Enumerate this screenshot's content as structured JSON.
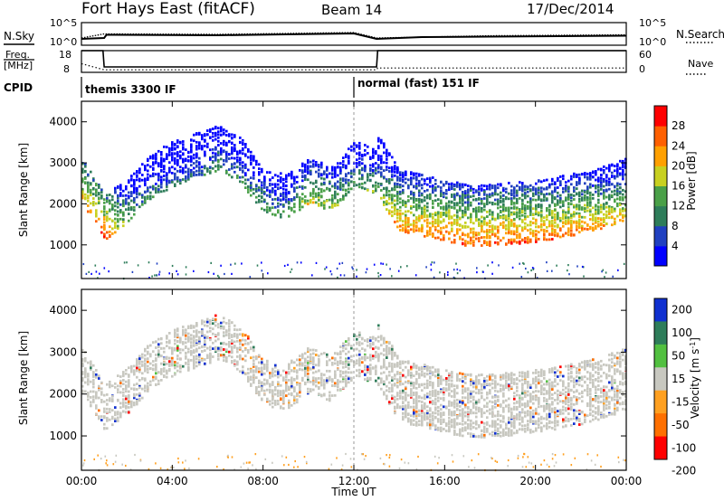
{
  "header": {
    "station": "Fort Hays East (fitACF)",
    "beam": "Beam 14",
    "date": "17/Dec/2014"
  },
  "noise_panel": {
    "left_label": "N.Sky",
    "right_label": "N.Search",
    "y_ticks_left": [
      "10^5",
      "10^0"
    ],
    "y_ticks_right": [
      "10^5",
      "10^0"
    ]
  },
  "freq_panel": {
    "left_label_1": "Freq.",
    "left_label_2": "[MHz]",
    "right_label": "Nave",
    "y_ticks_left": [
      "18",
      "8"
    ],
    "y_ticks_right": [
      "60",
      "0"
    ]
  },
  "cpid_panel": {
    "label": "CPID",
    "modes": [
      "themis 3300 IF",
      "normal (fast) 151 IF"
    ]
  },
  "power_panel": {
    "ylabel": "Slant Range [km]",
    "y_ticks": [
      "1000",
      "2000",
      "3000",
      "4000"
    ],
    "colorbar_label": "Power [dB]",
    "colorbar_ticks": [
      "4",
      "8",
      "12",
      "16",
      "20",
      "24",
      "28"
    ]
  },
  "velocity_panel": {
    "ylabel": "Slant Range [km]",
    "y_ticks": [
      "1000",
      "2000",
      "3000",
      "4000"
    ],
    "colorbar_label": "Velocity [m s",
    "colorbar_label_sup": "-1",
    "colorbar_label_end": "]",
    "colorbar_ticks": [
      "200",
      "100",
      "50",
      "15",
      "-15",
      "-50",
      "-100",
      "-200"
    ]
  },
  "x_axis": {
    "ticks": [
      "00:00",
      "04:00",
      "08:00",
      "12:00",
      "16:00",
      "20:00",
      "00:00"
    ],
    "label": "Time UT"
  },
  "colors": {
    "power_scale": [
      "#0000ff",
      "#2040c0",
      "#2e7d5a",
      "#4aa048",
      "#c8d020",
      "#ffa000",
      "#ff6000",
      "#ff0000"
    ],
    "velocity_scale": [
      "#1030d0",
      "#2e7d5a",
      "#52c040",
      "#c8c8c0",
      "#ffa020",
      "#ff7000",
      "#ff0000"
    ]
  },
  "chart_data": [
    {
      "type": "line",
      "panel": "noise",
      "series": [
        {
          "name": "N.Sky",
          "x": [
            0,
            1,
            1.1,
            6,
            9,
            12,
            13,
            15,
            18,
            21,
            24
          ],
          "y": [
            1.4,
            1.6,
            2.3,
            2.2,
            2.4,
            2.6,
            1.4,
            1.8,
            1.9,
            2.0,
            2.1
          ]
        },
        {
          "name": "N.Search",
          "x": [
            0,
            1,
            6,
            12,
            13,
            18,
            24
          ],
          "y": [
            1.6,
            2.5,
            2.4,
            2.8,
            1.6,
            2.1,
            2.3
          ]
        }
      ],
      "ylim": [
        0,
        5
      ],
      "xlim": [
        0,
        24
      ]
    },
    {
      "type": "line",
      "panel": "frequency",
      "series": [
        {
          "name": "Freq.",
          "x": [
            0,
            0.95,
            1.0,
            13.0,
            13.05,
            24
          ],
          "y": [
            18,
            18,
            10.5,
            10.5,
            18,
            18
          ]
        },
        {
          "name": "Nave",
          "x": [
            0,
            1,
            13,
            13.05,
            24
          ],
          "y": [
            24,
            7,
            7,
            12,
            12
          ]
        }
      ],
      "ylim": [
        8,
        18
      ],
      "xlim": [
        0,
        24
      ]
    },
    {
      "type": "heatmap",
      "panel": "power",
      "x": [
        0,
        1,
        2,
        3,
        4,
        5,
        6,
        7,
        8,
        9,
        10,
        11,
        12,
        13,
        14,
        15,
        16,
        17,
        18,
        19,
        20,
        21,
        22,
        23,
        24
      ],
      "echo_range_km": [
        2200,
        1300,
        1700,
        2300,
        2600,
        2800,
        3000,
        2700,
        1900,
        1800,
        2200,
        2000,
        2600,
        2400,
        1500,
        1400,
        1250,
        1150,
        1150,
        1200,
        1250,
        1350,
        1450,
        1600,
        1800
      ],
      "peak_power_db": [
        26,
        30,
        18,
        14,
        12,
        12,
        16,
        14,
        18,
        16,
        22,
        20,
        16,
        18,
        28,
        28,
        30,
        30,
        30,
        30,
        30,
        28,
        28,
        26,
        24
      ],
      "ylim": [
        180,
        4500
      ],
      "zlim": [
        0,
        30
      ]
    },
    {
      "type": "heatmap",
      "panel": "velocity",
      "x": [
        0,
        1,
        2,
        3,
        4,
        5,
        6,
        7,
        8,
        9,
        10,
        11,
        12,
        13,
        14,
        15,
        16,
        17,
        18,
        19,
        20,
        21,
        22,
        23,
        24
      ],
      "echo_range_km": [
        2200,
        1300,
        1700,
        2300,
        2600,
        2800,
        3000,
        2700,
        1900,
        1800,
        2200,
        2000,
        2600,
        2400,
        1500,
        1400,
        1250,
        1150,
        1150,
        1200,
        1250,
        1350,
        1450,
        1600,
        1800
      ],
      "velocity_ms": [
        0,
        0,
        0,
        0,
        10,
        100,
        50,
        -40,
        -60,
        -50,
        -30,
        0,
        50,
        0,
        0,
        0,
        0,
        0,
        0,
        0,
        0,
        0,
        0,
        0,
        0
      ],
      "ylim": [
        180,
        4500
      ],
      "zlim": [
        -250,
        250
      ]
    }
  ]
}
